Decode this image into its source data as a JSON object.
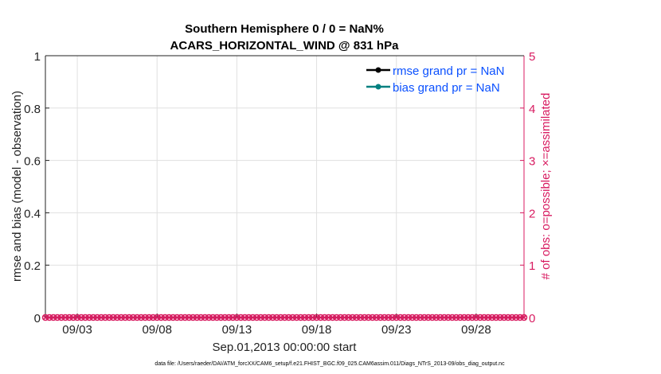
{
  "chart_data": {
    "type": "line",
    "title_lines": [
      "Southern Hemisphere 0 / 0 = NaN%",
      "ACARS_HORIZONTAL_WIND @ 831 hPa"
    ],
    "xlabel": "Sep.01,2013 00:00:00 start",
    "ylabel_left": "rmse and bias (model - observation)",
    "ylabel_right": "# of obs: o=possible; ×=assimilated",
    "xlim": [
      "2013-09-01T00:00",
      "2013-10-01T00:00"
    ],
    "ylim_left": [
      0,
      1
    ],
    "ylim_right": [
      0,
      5
    ],
    "xticks": [
      {
        "date": "2013-09-03",
        "label": "09/03"
      },
      {
        "date": "2013-09-08",
        "label": "09/08"
      },
      {
        "date": "2013-09-13",
        "label": "09/13"
      },
      {
        "date": "2013-09-18",
        "label": "09/18"
      },
      {
        "date": "2013-09-23",
        "label": "09/23"
      },
      {
        "date": "2013-09-28",
        "label": "09/28"
      }
    ],
    "yticks_left": [
      "0",
      "0.2",
      "0.4",
      "0.6",
      "0.8",
      "1"
    ],
    "yticks_right": [
      "0",
      "1",
      "2",
      "3",
      "4",
      "5"
    ],
    "grid": true,
    "legend_placement": "top-right",
    "series": [
      {
        "name": "rmse grand pr = NaN",
        "color": "#000000",
        "values": []
      },
      {
        "name": "bias grand pr = NaN",
        "color": "#008080",
        "values": []
      },
      {
        "name": "possible",
        "axis": "right",
        "marker": "o",
        "color": "#d81b60",
        "value_all": 0
      },
      {
        "name": "assimilated",
        "axis": "right",
        "marker": "x",
        "color": "#d81b60",
        "value_all": 0
      }
    ],
    "obs_times_first": "2013-09-01T00:00",
    "obs_times_last": "2013-10-01T00:00",
    "obs_times_step_hours": 6
  },
  "colors": {
    "right_axis": "#d81b60",
    "legend_text": "#0a50ff",
    "grid": "#e0e0e0"
  },
  "footer": "data file: /Users/raeder/DAI/ATM_forcXX/CAM6_setup/f.e21.FHIST_BGC.f09_025.CAM6assim.011/Diags_NTrS_2013-09/obs_diag_output.nc"
}
